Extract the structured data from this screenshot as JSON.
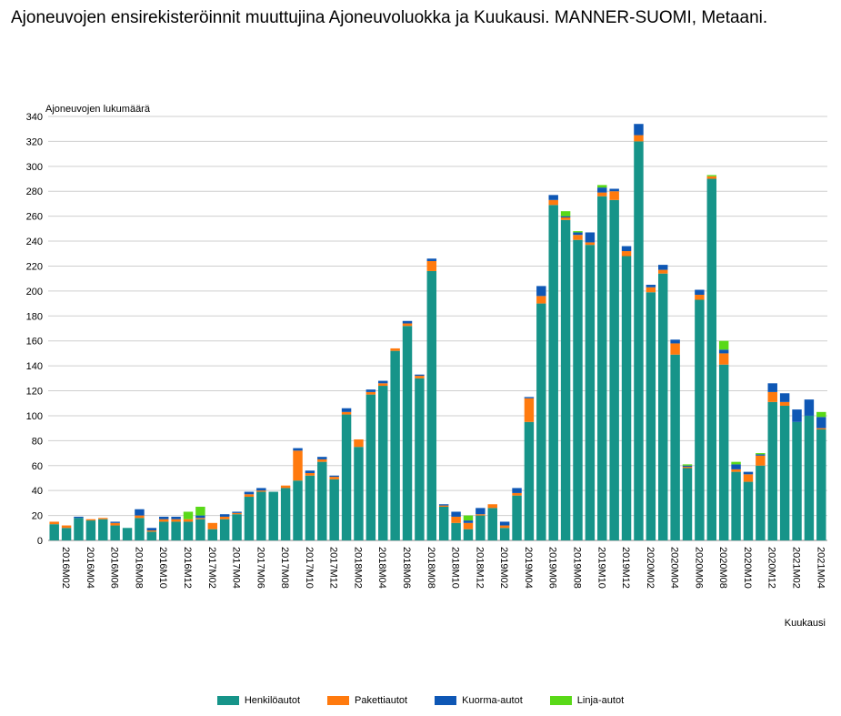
{
  "chart_data": {
    "type": "bar",
    "stacked": true,
    "title": "Ajoneuvojen ensirekisteröinnit muuttujina Ajoneuvoluokka ja Kuukausi. MANNER-SUOMI, Metaani.",
    "ylabel": "Ajoneuvojen lukumäärä",
    "xlabel": "Kuukausi",
    "ylim": [
      0,
      340
    ],
    "yticks": [
      0,
      20,
      40,
      60,
      80,
      100,
      120,
      140,
      160,
      180,
      200,
      220,
      240,
      260,
      280,
      300,
      320,
      340
    ],
    "grid": true,
    "legend_position": "bottom",
    "categories": [
      "2016M01",
      "2016M02",
      "2016M03",
      "2016M04",
      "2016M05",
      "2016M06",
      "2016M07",
      "2016M08",
      "2016M09",
      "2016M10",
      "2016M11",
      "2016M12",
      "2017M01",
      "2017M02",
      "2017M03",
      "2017M04",
      "2017M05",
      "2017M06",
      "2017M07",
      "2017M08",
      "2017M09",
      "2017M10",
      "2017M11",
      "2017M12",
      "2018M01",
      "2018M02",
      "2018M03",
      "2018M04",
      "2018M05",
      "2018M06",
      "2018M07",
      "2018M08",
      "2018M09",
      "2018M10",
      "2018M11",
      "2018M12",
      "2019M01",
      "2019M02",
      "2019M03",
      "2019M04",
      "2019M05",
      "2019M06",
      "2019M07",
      "2019M08",
      "2019M09",
      "2019M10",
      "2019M11",
      "2019M12",
      "2020M01",
      "2020M02",
      "2020M03",
      "2020M04",
      "2020M05",
      "2020M06",
      "2020M07",
      "2020M08",
      "2020M09",
      "2020M10",
      "2020M11",
      "2020M12",
      "2021M01",
      "2021M02",
      "2021M03",
      "2021M04"
    ],
    "tick_labels": [
      "2016M02",
      "2016M04",
      "2016M06",
      "2016M08",
      "2016M10",
      "2016M12",
      "2017M02",
      "2017M04",
      "2017M06",
      "2017M08",
      "2017M10",
      "2017M12",
      "2018M02",
      "2018M04",
      "2018M06",
      "2018M08",
      "2018M10",
      "2018M12",
      "2019M02",
      "2019M04",
      "2019M06",
      "2019M08",
      "2019M10",
      "2019M12",
      "2020M02",
      "2020M04",
      "2020M06",
      "2020M08",
      "2020M10",
      "2020M12",
      "2021M02",
      "2021M04"
    ],
    "series": [
      {
        "name": "Henkilöautot",
        "color": "#169489",
        "values": [
          13,
          10,
          18,
          16,
          17,
          12,
          10,
          18,
          7,
          15,
          15,
          15,
          17,
          9,
          17,
          21,
          35,
          39,
          39,
          42,
          48,
          52,
          63,
          49,
          101,
          75,
          117,
          124,
          152,
          172,
          130,
          216,
          27,
          14,
          9,
          20,
          26,
          10,
          36,
          95,
          190,
          269,
          257,
          241,
          237,
          276,
          273,
          228,
          320,
          199,
          214,
          149,
          58,
          193,
          290,
          141,
          55,
          47,
          60,
          111,
          108,
          95,
          100,
          89
        ]
      },
      {
        "name": "Pakettiautot",
        "color": "#ff7a0e",
        "values": [
          2,
          2,
          0,
          1,
          1,
          2,
          0,
          2,
          1,
          2,
          2,
          2,
          1,
          5,
          2,
          1,
          2,
          1,
          0,
          2,
          24,
          2,
          2,
          2,
          2,
          6,
          2,
          2,
          2,
          2,
          2,
          8,
          1,
          5,
          5,
          1,
          3,
          2,
          2,
          19,
          6,
          4,
          2,
          4,
          2,
          3,
          7,
          4,
          5,
          4,
          3,
          9,
          1,
          4,
          2,
          9,
          2,
          6,
          8,
          8,
          3,
          0,
          0,
          1
        ]
      },
      {
        "name": "Kuorma-autot",
        "color": "#0e57b5",
        "values": [
          0,
          0,
          1,
          0,
          0,
          1,
          0,
          5,
          2,
          2,
          2,
          0,
          2,
          0,
          2,
          1,
          2,
          2,
          0,
          0,
          2,
          2,
          2,
          1,
          3,
          0,
          2,
          2,
          0,
          2,
          1,
          2,
          1,
          4,
          2,
          5,
          0,
          3,
          4,
          1,
          8,
          4,
          1,
          2,
          8,
          4,
          2,
          4,
          9,
          2,
          4,
          3,
          1,
          4,
          0,
          3,
          4,
          2,
          1,
          7,
          7,
          10,
          13,
          9
        ]
      },
      {
        "name": "Linja-autot",
        "color": "#59d918",
        "values": [
          0,
          0,
          0,
          0,
          0,
          0,
          0,
          0,
          0,
          0,
          0,
          6,
          7,
          0,
          0,
          0,
          0,
          0,
          0,
          0,
          0,
          0,
          0,
          0,
          0,
          0,
          0,
          0,
          0,
          0,
          0,
          0,
          0,
          0,
          4,
          0,
          0,
          0,
          0,
          0,
          0,
          0,
          4,
          1,
          0,
          2,
          0,
          0,
          0,
          0,
          0,
          0,
          1,
          0,
          1,
          7,
          2,
          0,
          1,
          0,
          0,
          0,
          0,
          4
        ]
      }
    ]
  }
}
